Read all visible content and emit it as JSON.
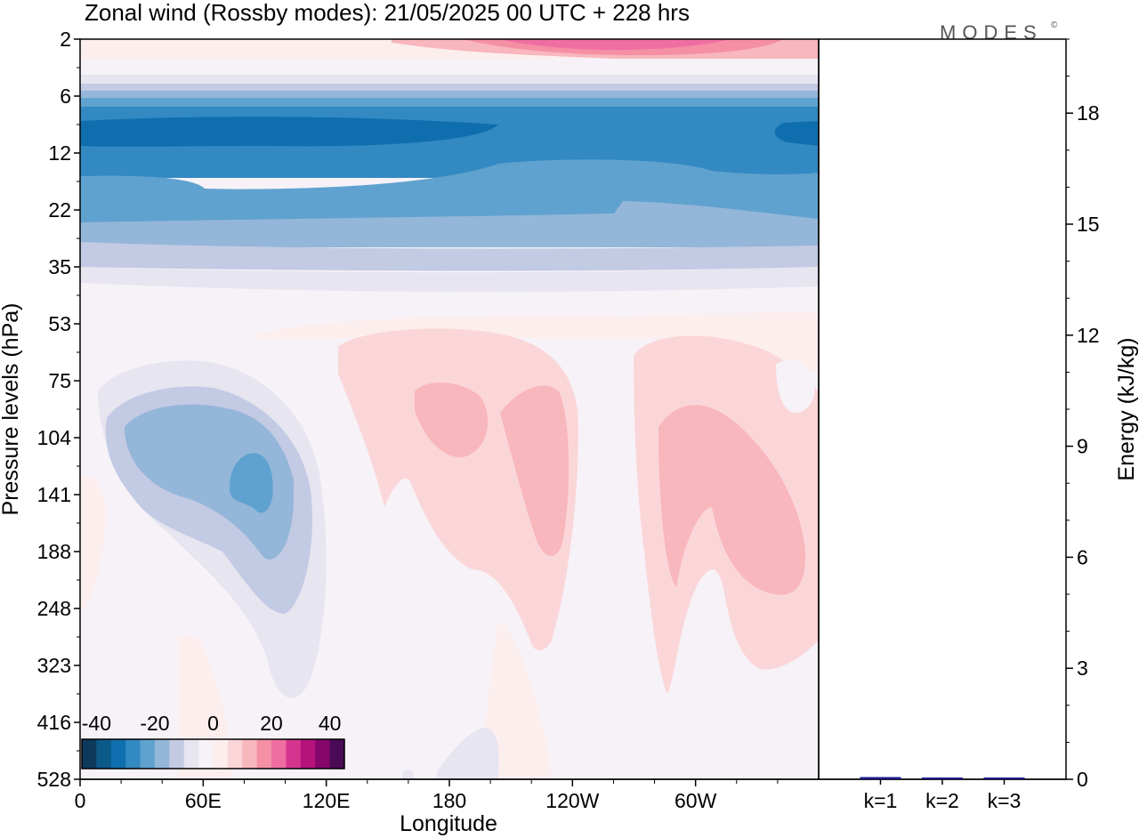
{
  "chart_data": [
    {
      "type": "heatmap",
      "title": "Zonal wind (Rossby modes):  21/05/2025  00 UTC  + 228 hrs",
      "xlabel": "Longitude",
      "ylabel": "Pressure levels (hPa)",
      "x_ticks": [
        "0",
        "60E",
        "120E",
        "180",
        "120W",
        "60W"
      ],
      "x_range": [
        0,
        360
      ],
      "y_ticks": [
        "2",
        "6",
        "12",
        "22",
        "35",
        "53",
        "75",
        "104",
        "141",
        "188",
        "248",
        "323",
        "416",
        "528"
      ],
      "colorbar": {
        "ticks": [
          "-40",
          "-20",
          "0",
          "20",
          "40"
        ],
        "range": [
          -45,
          45
        ],
        "step": 5,
        "colors": [
          "#0d3a5c",
          "#0b5a8a",
          "#0f6fae",
          "#3389c2",
          "#5fa2cf",
          "#94b6d8",
          "#c3cae4",
          "#e6e5f0",
          "#f6f2f8",
          "#fdeeee",
          "#fbd6d8",
          "#f8b6bd",
          "#f58fa4",
          "#ef6ea2",
          "#d6358f",
          "#b5127c",
          "#86066c",
          "#4b0a55"
        ]
      },
      "features": [
        {
          "level": "2",
          "lon": "120W-60W",
          "value": 40
        },
        {
          "level": "6-12",
          "lon": "all",
          "value": -40
        },
        {
          "level": "12-35",
          "lon": "all",
          "value": -25
        },
        {
          "level": "75-248",
          "lon": "60E-120E",
          "value": -20
        },
        {
          "level": "75-248",
          "lon": "180-120W",
          "value": 15
        },
        {
          "level": "75-248",
          "lon": "60W-0",
          "value": 15
        }
      ]
    },
    {
      "type": "bar",
      "categories": [
        "k=1",
        "k=2",
        "k=3"
      ],
      "values": [
        0.06,
        0.03,
        0.03
      ],
      "ylabel": "Energy (kJ/kg)",
      "yticks": [
        "0",
        "3",
        "6",
        "9",
        "12",
        "15",
        "18"
      ],
      "ylim": [
        0,
        20
      ],
      "bar_color": "#1a1a8c"
    }
  ],
  "logo": {
    "text": "MODES",
    "mark": "©"
  }
}
